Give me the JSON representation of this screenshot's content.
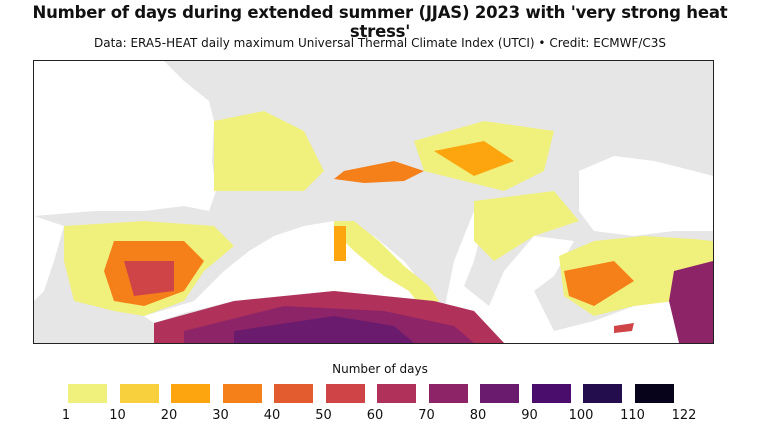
{
  "title": "Number of days during extended summer (JJAS) 2023 with 'very strong heat stress'",
  "subtitle": "Data: ERA5-HEAT daily maximum Universal Thermal Climate Index (UTCI) • Credit: ECMWF/C3S",
  "legend": {
    "title": "Number of days",
    "ticks": [
      "1",
      "10",
      "20",
      "30",
      "40",
      "50",
      "60",
      "70",
      "80",
      "90",
      "100",
      "110",
      "122"
    ],
    "colors": [
      "#f0f07d",
      "#f8cf3c",
      "#fca50f",
      "#f57f19",
      "#e35c30",
      "#cf4446",
      "#b0325a",
      "#8e2468",
      "#6a1b6e",
      "#4b0d6b",
      "#230d4d",
      "#06031a"
    ]
  },
  "map": {
    "land_no_data_color": "#e6e6e6",
    "sea_color": "#ffffff"
  }
}
